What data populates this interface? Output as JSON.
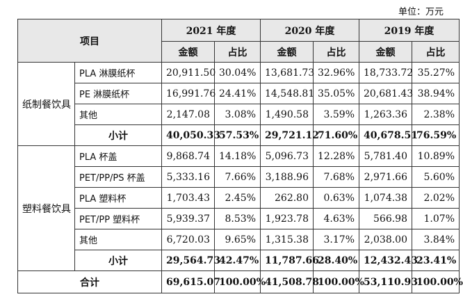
{
  "unit_label": "单位：万元",
  "header": {
    "item": "项目",
    "years": [
      "2021 年度",
      "2020 年度",
      "2019 年度"
    ],
    "amount": "金额",
    "ratio": "占比"
  },
  "groups": [
    {
      "category": "纸制餐饮具",
      "rows": [
        {
          "name": "PLA 淋膜纸杯",
          "values": [
            "20,911.50",
            "30.04%",
            "13,681.73",
            "32.96%",
            "18,733.72",
            "35.27%"
          ]
        },
        {
          "name": "PE 淋膜纸杯",
          "values": [
            "16,991.76",
            "24.41%",
            "14,548.81",
            "35.05%",
            "20,681.43",
            "38.94%"
          ]
        },
        {
          "name": "其他",
          "values": [
            "2,147.08",
            "3.08%",
            "1,490.58",
            "3.59%",
            "1,263.36",
            "2.38%"
          ]
        }
      ],
      "subtotal": {
        "label": "小计",
        "values": [
          "40,050.33",
          "57.53%",
          "29,721.12",
          "71.60%",
          "40,678.51",
          "76.59%"
        ]
      }
    },
    {
      "category": "塑料餐饮具",
      "rows": [
        {
          "name": "PLA 杯盖",
          "values": [
            "9,868.74",
            "14.18%",
            "5,096.73",
            "12.28%",
            "5,781.40",
            "10.89%"
          ]
        },
        {
          "name": "PET/PP/PS 杯盖",
          "values": [
            "5,333.16",
            "7.66%",
            "3,188.96",
            "7.68%",
            "2,971.66",
            "5.60%"
          ]
        },
        {
          "name": "PLA 塑料杯",
          "values": [
            "1,703.43",
            "2.45%",
            "262.80",
            "0.63%",
            "1,074.38",
            "2.02%"
          ]
        },
        {
          "name": "PET/PP 塑料杯",
          "values": [
            "5,939.37",
            "8.53%",
            "1,923.78",
            "4.63%",
            "566.98",
            "1.07%"
          ]
        },
        {
          "name": "其他",
          "values": [
            "6,720.03",
            "9.65%",
            "1,315.38",
            "3.17%",
            "2,038.00",
            "3.84%"
          ]
        }
      ],
      "subtotal": {
        "label": "小计",
        "values": [
          "29,564.73",
          "42.47%",
          "11,787.66",
          "28.40%",
          "12,432.43",
          "23.41%"
        ]
      }
    }
  ],
  "total": {
    "label": "合计",
    "values": [
      "69,615.07",
      "100.00%",
      "41,508.78",
      "100.00%",
      "53,110.93",
      "100.00%"
    ]
  }
}
